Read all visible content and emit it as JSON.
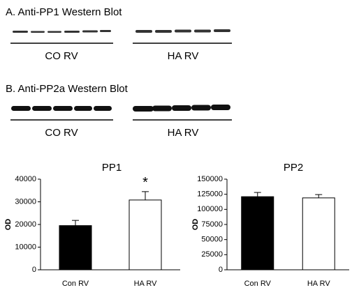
{
  "blots": [
    {
      "title": "A. Anti-PP1 Western Blot",
      "labels": [
        "CO RV",
        "HA RV"
      ]
    },
    {
      "title": "B. Anti-PP2a Western Blot",
      "labels": [
        "CO RV",
        "HA RV"
      ]
    }
  ],
  "chart_data": [
    {
      "type": "bar",
      "title": "PP1",
      "y_label": "OD",
      "categories": [
        "Con RV",
        "HA RV"
      ],
      "values": [
        19500,
        30800
      ],
      "errors": [
        2300,
        3700
      ],
      "colors": [
        "#000000",
        "#ffffff"
      ],
      "annotations": [
        null,
        "*"
      ],
      "ylim": [
        0,
        40000
      ],
      "yticks": [
        0,
        10000,
        20000,
        30000,
        40000
      ]
    },
    {
      "type": "bar",
      "title": "PP2",
      "y_label": "OD",
      "categories": [
        "Con RV",
        "HA RV"
      ],
      "values": [
        121000,
        119000
      ],
      "errors": [
        7000,
        5500
      ],
      "colors": [
        "#000000",
        "#ffffff"
      ],
      "annotations": [
        null,
        null
      ],
      "ylim": [
        0,
        150000
      ],
      "yticks": [
        0,
        25000,
        50000,
        75000,
        100000,
        125000,
        150000
      ]
    }
  ]
}
